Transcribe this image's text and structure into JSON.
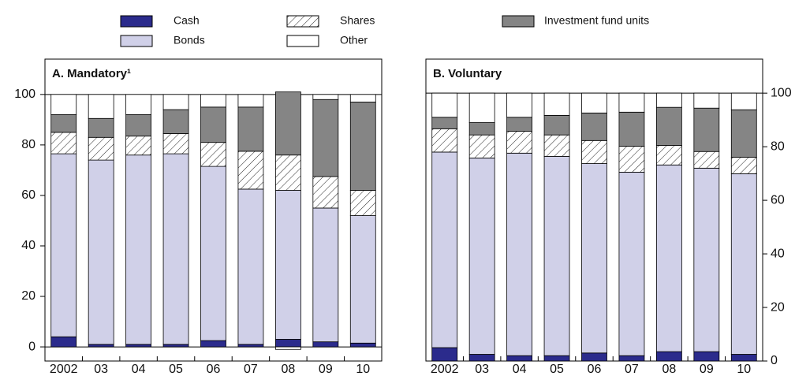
{
  "legend": [
    {
      "name": "Cash",
      "color": "#2b2b8c"
    },
    {
      "name": "Bonds",
      "color": "#d0d0e8"
    },
    {
      "name": "Shares",
      "color": "#ffffff",
      "pattern": "hatch"
    },
    {
      "name": "Investment fund units",
      "color": "#858585"
    },
    {
      "name": "Other",
      "color": "#ffffff"
    }
  ],
  "chart_data": [
    {
      "type": "stacked_bar",
      "title": "A. Mandatory¹",
      "axis": "left",
      "categories": [
        "2002",
        "03",
        "04",
        "05",
        "06",
        "07",
        "08",
        "09",
        "10"
      ],
      "ylim": [
        -5.6,
        114
      ],
      "yticks": [
        0,
        20,
        40,
        60,
        80,
        100
      ],
      "series": [
        {
          "values": [
            4,
            1,
            1,
            1,
            2.5,
            1,
            3,
            2,
            1.5
          ]
        },
        {
          "values": [
            72.5,
            73,
            75,
            75.5,
            69,
            61.5,
            59,
            53,
            50.5
          ]
        },
        {
          "values": [
            8.5,
            9,
            7.5,
            8,
            9.5,
            15,
            14,
            12.5,
            10
          ]
        },
        {
          "values": [
            7,
            7.5,
            8.5,
            9.5,
            14,
            17.5,
            25,
            30.5,
            35
          ]
        },
        {
          "values": [
            8,
            9.5,
            8,
            6,
            5,
            5,
            -1,
            2,
            3
          ]
        }
      ]
    },
    {
      "type": "stacked_bar",
      "title": "B. Voluntary",
      "axis": "right",
      "categories": [
        "2002",
        "03",
        "04",
        "05",
        "06",
        "07",
        "08",
        "09",
        "10"
      ],
      "ylim": [
        0,
        112.7
      ],
      "yticks": [
        0,
        20,
        40,
        60,
        80,
        100
      ],
      "series": [
        {
          "values": [
            5,
            2.5,
            2,
            2,
            3,
            2,
            3.5,
            3.5,
            2.5
          ]
        },
        {
          "values": [
            73,
            73.3,
            75.6,
            74.4,
            70.7,
            68.5,
            69.7,
            68.5,
            67.4
          ]
        },
        {
          "values": [
            8.7,
            8.6,
            8.2,
            8,
            8.6,
            9.7,
            7.3,
            6.2,
            6.2
          ]
        },
        {
          "values": [
            4.3,
            4.6,
            5.2,
            7.3,
            10.3,
            12.7,
            14.2,
            16.2,
            17.7
          ]
        },
        {
          "values": [
            9,
            11,
            9,
            8.3,
            7.4,
            7.1,
            5.3,
            5.6,
            6.2
          ]
        }
      ]
    }
  ]
}
